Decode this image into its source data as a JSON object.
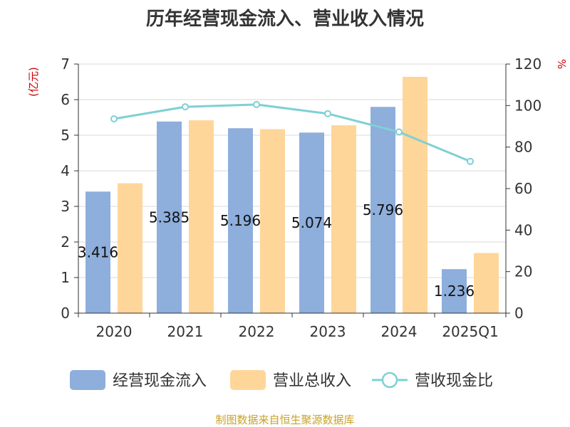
{
  "chart_data": {
    "type": "bar",
    "title": "历年经营现金流入、营业收入情况",
    "categories": [
      "2020",
      "2021",
      "2022",
      "2023",
      "2024",
      "2025Q1"
    ],
    "left_axis": {
      "unit_label": "(亿元)",
      "ylim": [
        0,
        7
      ],
      "ticks": [
        "0",
        "1",
        "2",
        "3",
        "4",
        "5",
        "6",
        "7"
      ]
    },
    "right_axis": {
      "unit_label": "%",
      "ylim": [
        0,
        120
      ],
      "ticks": [
        "0",
        "20",
        "40",
        "60",
        "80",
        "100",
        "120"
      ]
    },
    "series": [
      {
        "name": "经营现金流入",
        "type": "bar",
        "axis": "left",
        "color": "#8eaedc",
        "values": [
          3.416,
          5.385,
          5.196,
          5.074,
          5.796,
          1.236
        ],
        "labels": [
          "3.416",
          "5.385",
          "5.196",
          "5.074",
          "5.796",
          "1.236"
        ]
      },
      {
        "name": "营业总收入",
        "type": "bar",
        "axis": "left",
        "color": "#ffd699",
        "values": [
          3.65,
          5.42,
          5.17,
          5.28,
          6.64,
          1.69
        ]
      },
      {
        "name": "营收现金比",
        "type": "line",
        "axis": "right",
        "color": "#7fd0d3",
        "values": [
          93.6,
          99.4,
          100.5,
          96.1,
          87.3,
          73.1
        ]
      }
    ],
    "legend_position": "bottom",
    "grid": true
  },
  "source_text": "制图数据来自恒生聚源数据库"
}
